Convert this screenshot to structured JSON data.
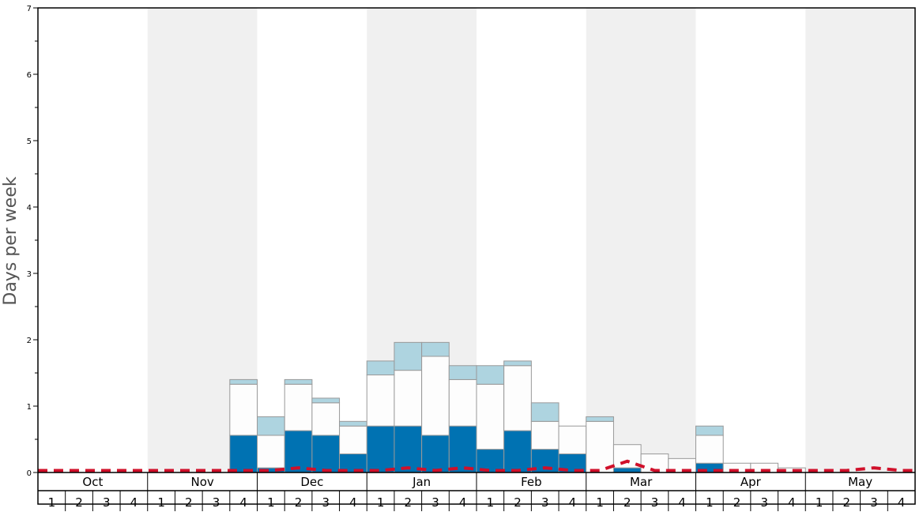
{
  "chart_data": {
    "type": "bar",
    "ylabel": "Days per week",
    "ylim": [
      0,
      7
    ],
    "yticks": [
      "0",
      "1",
      "2",
      "3",
      "4",
      "5",
      "6",
      "7"
    ],
    "months": [
      "Oct",
      "Nov",
      "Dec",
      "Jan",
      "Feb",
      "Mar",
      "Apr",
      "May"
    ],
    "week_labels": [
      "1",
      "2",
      "3",
      "4"
    ],
    "series": [
      {
        "name": "dark",
        "color": "#0072b2",
        "values": [
          0,
          0,
          0,
          0,
          0,
          0,
          0,
          0.56,
          0.07,
          0.63,
          0.56,
          0.28,
          0.7,
          0.7,
          0.56,
          0.7,
          0.35,
          0.63,
          0.35,
          0.28,
          0,
          0.07,
          0,
          0,
          0.14,
          0,
          0,
          0,
          0,
          0,
          0,
          0
        ]
      },
      {
        "name": "white",
        "color": "#fdfdfd",
        "values": [
          0,
          0,
          0,
          0,
          0,
          0,
          0,
          0.77,
          0.49,
          0.7,
          0.49,
          0.42,
          0.77,
          0.84,
          1.19,
          0.7,
          0.98,
          0.98,
          0.42,
          0.42,
          0.77,
          0.35,
          0.28,
          0.21,
          0.42,
          0.14,
          0.14,
          0.07,
          0,
          0,
          0,
          0
        ]
      },
      {
        "name": "light",
        "color": "#aed4e0",
        "values": [
          0,
          0,
          0,
          0,
          0,
          0,
          0,
          0.07,
          0.28,
          0.07,
          0.07,
          0.07,
          0.21,
          0.42,
          0.21,
          0.21,
          0.28,
          0.07,
          0.28,
          0,
          0.07,
          0,
          0,
          0,
          0.14,
          0,
          0,
          0,
          0,
          0,
          0,
          0
        ]
      }
    ],
    "dashed_line": {
      "color": "#d0102a",
      "values": [
        0.03,
        0.03,
        0.03,
        0.03,
        0.03,
        0.03,
        0.03,
        0.03,
        0.03,
        0.07,
        0.03,
        0.03,
        0.03,
        0.07,
        0.03,
        0.07,
        0.03,
        0.03,
        0.07,
        0.03,
        0.03,
        0.17,
        0.03,
        0.03,
        0.03,
        0.03,
        0.03,
        0.03,
        0.03,
        0.03,
        0.07,
        0.03
      ]
    },
    "colors": {
      "shade": "#f0f0f0",
      "border": "#999999"
    }
  }
}
